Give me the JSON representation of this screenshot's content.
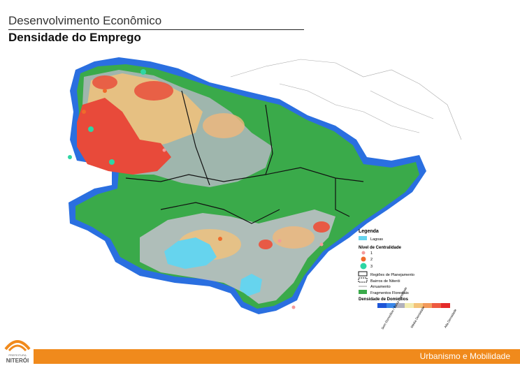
{
  "header": {
    "title": "Desenvolvimento Econômico",
    "subtitle": "Densidade do Emprego"
  },
  "legend": {
    "title": "Legenda",
    "lagoons": "Lagoas",
    "centrality_title": "Nível de Centralidade",
    "centrality_levels": [
      "1",
      "2",
      "3"
    ],
    "regions": "Regiões de Planejamento",
    "neighborhoods": "Bairros de Niterói",
    "streets": "Arruamento",
    "forest": "Fragmentos Florestais",
    "density_title": "Densidade de Domicílios",
    "density_labels": [
      "Sem Domicílios / Baixa Densidade",
      "Média Densidade",
      "Alta Densidade"
    ]
  },
  "footer": {
    "section": "Urbanismo e Mobilidade",
    "logo_top": "PREFEITURA",
    "logo_name": "NITERÓI"
  }
}
